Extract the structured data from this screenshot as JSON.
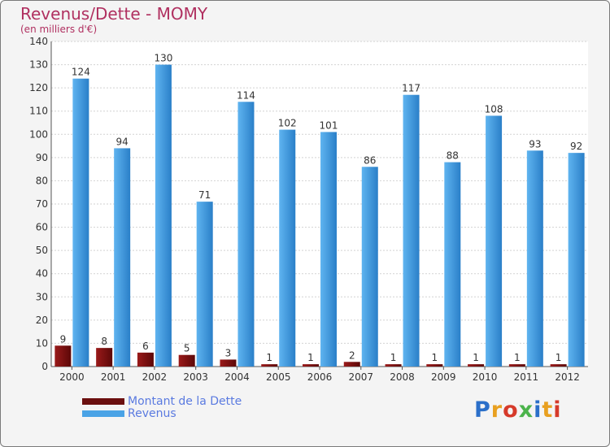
{
  "header": {
    "title": "Revenus/Dette - MOMY",
    "subtitle": "(en milliers d'€)"
  },
  "chart_data": {
    "type": "bar",
    "title": "Revenus/Dette - MOMY",
    "subtitle": "(en milliers d'€)",
    "xlabel": "",
    "ylabel": "",
    "ylim": [
      0,
      140
    ],
    "yticks": [
      0,
      10,
      20,
      30,
      40,
      50,
      60,
      70,
      80,
      90,
      100,
      110,
      120,
      130,
      140
    ],
    "grid": true,
    "categories": [
      "2000",
      "2001",
      "2002",
      "2003",
      "2004",
      "2005",
      "2006",
      "2007",
      "2008",
      "2009",
      "2010",
      "2011",
      "2012"
    ],
    "series": [
      {
        "name": "Montant de la Dette",
        "color": "#7a1010",
        "values": [
          9,
          8,
          6,
          5,
          3,
          1,
          1,
          2,
          1,
          1,
          1,
          1,
          1
        ]
      },
      {
        "name": "Revenus",
        "color": "#3d9be0",
        "values": [
          124,
          94,
          130,
          71,
          114,
          102,
          101,
          86,
          117,
          88,
          108,
          93,
          92
        ]
      }
    ],
    "legend_position": "bottom-left"
  },
  "legend": {
    "items": [
      {
        "label": "Montant de la Dette",
        "color": "#6b0f0f"
      },
      {
        "label": "Revenus",
        "color": "#4aa3e6"
      }
    ]
  },
  "logo": {
    "letters": [
      {
        "char": "P",
        "color": "#2b6fc9"
      },
      {
        "char": "r",
        "color": "#e8a020"
      },
      {
        "char": "o",
        "color": "#d63a2a"
      },
      {
        "char": "x",
        "color": "#4bb34b"
      },
      {
        "char": "i",
        "color": "#2b6fc9"
      },
      {
        "char": "t",
        "color": "#e8a020"
      },
      {
        "char": "i",
        "color": "#d63a2a"
      }
    ]
  }
}
